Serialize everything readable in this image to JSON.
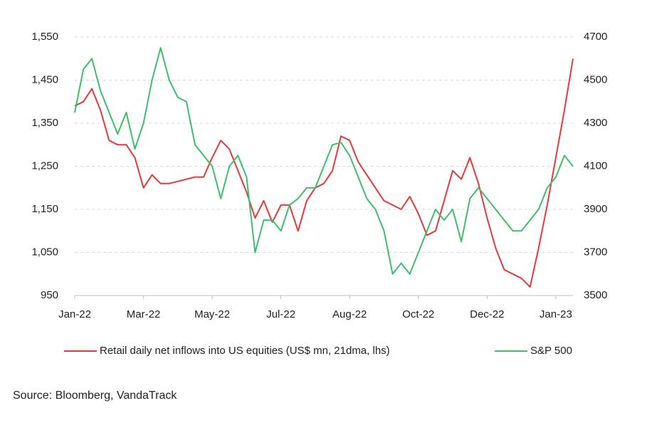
{
  "chart_data": {
    "type": "line",
    "categories": [
      "Jan-22",
      null,
      null,
      null,
      null,
      null,
      null,
      null,
      "Mar-22",
      null,
      null,
      null,
      null,
      null,
      null,
      null,
      "May-22",
      null,
      null,
      null,
      null,
      null,
      null,
      null,
      "Jul-22",
      null,
      null,
      null,
      null,
      null,
      null,
      null,
      "Aug-22",
      null,
      null,
      null,
      null,
      null,
      null,
      null,
      "Oct-22",
      null,
      null,
      null,
      null,
      null,
      null,
      null,
      "Dec-22",
      null,
      null,
      null,
      null,
      null,
      null,
      null,
      "Jan-23",
      null,
      null
    ],
    "series": [
      {
        "name": "Retail daily net inflows into US equities (US$ mn, 21dma, lhs)",
        "color": "#e8393a",
        "values": [
          1390,
          1400,
          1430,
          1380,
          1310,
          1300,
          1300,
          1270,
          1200,
          1230,
          1210,
          1210,
          1215,
          1220,
          1225,
          1225,
          1270,
          1310,
          1290,
          1240,
          1190,
          1130,
          1170,
          1120,
          1160,
          1160,
          1100,
          1170,
          1200,
          1210,
          1240,
          1320,
          1310,
          1260,
          1230,
          1200,
          1170,
          1160,
          1150,
          1180,
          1140,
          1090,
          1100,
          1170,
          1240,
          1220,
          1270,
          1210,
          1130,
          1060,
          1010,
          1000,
          990,
          970,
          1060,
          1160,
          1270,
          1380,
          1500
        ]
      },
      {
        "name": "S&P 500",
        "color": "#3dbf6b",
        "axis": "y2",
        "values": [
          4350,
          4550,
          4600,
          4450,
          4350,
          4250,
          4350,
          4180,
          4300,
          4500,
          4650,
          4500,
          4420,
          4400,
          4200,
          4150,
          4100,
          3950,
          4100,
          4150,
          4050,
          3700,
          3850,
          3850,
          3800,
          3920,
          3950,
          4000,
          4000,
          4100,
          4200,
          4210,
          4150,
          4050,
          3950,
          3900,
          3800,
          3600,
          3650,
          3600,
          3700,
          3800,
          3900,
          3850,
          3900,
          3750,
          3950,
          4000,
          3950,
          3900,
          3850,
          3800,
          3800,
          3850,
          3900,
          4000,
          4050,
          4150,
          4100
        ]
      }
    ],
    "ylim": [
      950,
      1550
    ],
    "yticks": [
      {
        "value": 950,
        "label": "950"
      },
      {
        "value": 1050,
        "label": "1,050"
      },
      {
        "value": 1150,
        "label": "1,150"
      },
      {
        "value": 1250,
        "label": "1,250"
      },
      {
        "value": 1350,
        "label": "1,350"
      },
      {
        "value": 1450,
        "label": "1,450"
      },
      {
        "value": 1550,
        "label": "1,550"
      }
    ],
    "y2lim": [
      3500,
      4700
    ],
    "y2ticks": [
      3500,
      3700,
      3900,
      4100,
      4300,
      4500,
      4700
    ],
    "grid": true,
    "legend": "bottom",
    "source": "Source: Bloomberg, VandaTrack"
  }
}
